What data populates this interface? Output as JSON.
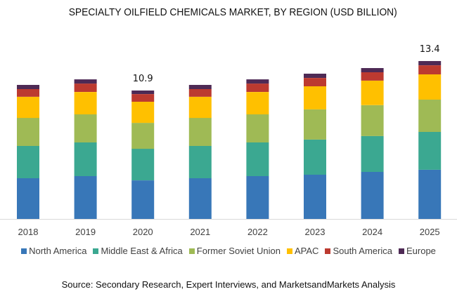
{
  "chart_data": {
    "type": "bar",
    "stacked": true,
    "title": "SPECIALTY OILFIELD CHEMICALS MARKET, BY REGION (USD BILLION)",
    "xlabel": "",
    "ylabel": "",
    "ylim": [
      0,
      14
    ],
    "grid": false,
    "legend_position": "bottom",
    "categories": [
      "2018",
      "2019",
      "2020",
      "2021",
      "2022",
      "2023",
      "2024",
      "2025"
    ],
    "series": [
      {
        "name": "North America",
        "color": "#3877B8",
        "values": [
          3.45,
          3.63,
          3.27,
          3.45,
          3.63,
          3.75,
          3.99,
          4.17
        ]
      },
      {
        "name": "Middle East & Africa",
        "color": "#3BA891",
        "values": [
          2.74,
          2.86,
          2.68,
          2.74,
          2.86,
          2.98,
          3.04,
          3.21
        ]
      },
      {
        "name": "Former Soviet Union",
        "color": "#9FBA55",
        "values": [
          2.38,
          2.38,
          2.2,
          2.38,
          2.38,
          2.56,
          2.62,
          2.74
        ]
      },
      {
        "name": "APAC",
        "color": "#FFC000",
        "values": [
          1.79,
          1.9,
          1.79,
          1.79,
          1.9,
          1.96,
          2.08,
          2.14
        ]
      },
      {
        "name": "South America",
        "color": "#BC3A30",
        "values": [
          0.65,
          0.71,
          0.65,
          0.65,
          0.71,
          0.71,
          0.71,
          0.77
        ]
      },
      {
        "name": "Europe",
        "color": "#4E2A55",
        "values": [
          0.36,
          0.36,
          0.3,
          0.36,
          0.36,
          0.36,
          0.36,
          0.36
        ]
      }
    ],
    "data_labels": [
      {
        "category": "2020",
        "text": "10.9"
      },
      {
        "category": "2025",
        "text": "13.4"
      }
    ],
    "axis_color": "#D9D9D9"
  },
  "source": "Source: Secondary Research, Expert Interviews, and MarketsandMarkets Analysis"
}
